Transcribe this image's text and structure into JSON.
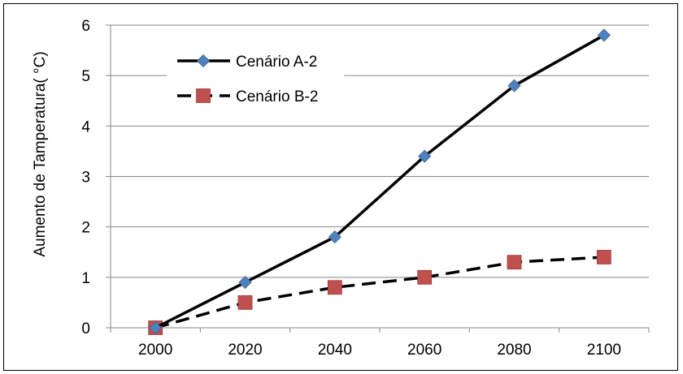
{
  "chart_data": {
    "type": "line",
    "title": "",
    "xlabel": "",
    "ylabel": "Aumento de Tamperatura( °C)",
    "categories": [
      "2000",
      "2020",
      "2040",
      "2060",
      "2080",
      "2100"
    ],
    "ylim": [
      0,
      6
    ],
    "yticks": [
      0,
      1,
      2,
      3,
      4,
      5,
      6
    ],
    "grid": true,
    "legend_position": "top-left",
    "series": [
      {
        "name": "Cenário A-2",
        "values": [
          0,
          0.9,
          1.8,
          3.4,
          4.8,
          5.8
        ],
        "line_style": "solid",
        "marker": "diamond",
        "marker_color": "#4F81BD",
        "line_color": "#000000"
      },
      {
        "name": "Cenário B-2",
        "values": [
          0,
          0.5,
          0.8,
          1.0,
          1.3,
          1.4
        ],
        "line_style": "dashed",
        "marker": "square",
        "marker_color": "#C0504D",
        "line_color": "#000000"
      }
    ]
  }
}
